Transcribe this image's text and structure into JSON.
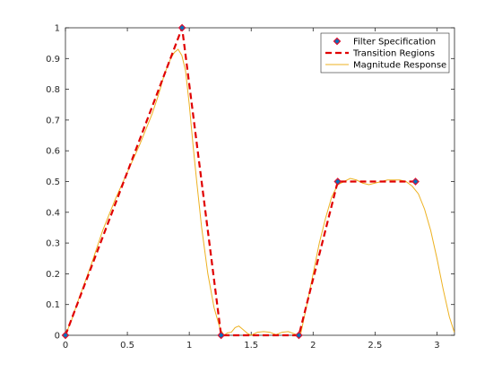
{
  "chart_data": {
    "type": "line",
    "title": "",
    "xlabel": "",
    "ylabel": "",
    "xlim": [
      0,
      3.14159
    ],
    "ylim": [
      0,
      1
    ],
    "xticks": [
      0,
      0.5,
      1,
      1.5,
      2,
      2.5,
      3
    ],
    "xtick_labels": [
      "0",
      "0.5",
      "1",
      "1.5",
      "2",
      "2.5",
      "3"
    ],
    "yticks": [
      0,
      0.1,
      0.2,
      0.3,
      0.4,
      0.5,
      0.6,
      0.7,
      0.8,
      0.9,
      1
    ],
    "ytick_labels": [
      "0",
      "0.1",
      "0.2",
      "0.3",
      "0.4",
      "0.5",
      "0.6",
      "0.7",
      "0.8",
      "0.9",
      "1"
    ],
    "grid": false,
    "legend": {
      "position": "top-right"
    },
    "series": [
      {
        "name": "Filter Specification",
        "kind": "markers",
        "color": "#0072BD",
        "edge_color": "#E0102F",
        "x": [
          0,
          0.942,
          1.257,
          1.885,
          2.199,
          2.827
        ],
        "y": [
          0,
          1,
          0,
          0,
          0.5,
          0.5
        ]
      },
      {
        "name": "Transition Regions",
        "kind": "dashed-line",
        "color": "#E00000",
        "x": [
          0,
          0.942,
          1.257,
          1.885,
          2.199,
          2.827
        ],
        "y": [
          0,
          1,
          0,
          0,
          0.5,
          0.5
        ]
      },
      {
        "name": "Magnitude Response",
        "kind": "line",
        "color": "#EDB120",
        "x": [
          0,
          0.05,
          0.1,
          0.2,
          0.3,
          0.4,
          0.5,
          0.6,
          0.7,
          0.75,
          0.8,
          0.85,
          0.88,
          0.91,
          0.94,
          0.97,
          1.0,
          1.03,
          1.06,
          1.1,
          1.15,
          1.2,
          1.25,
          1.28,
          1.31,
          1.34,
          1.37,
          1.4,
          1.43,
          1.47,
          1.5,
          1.55,
          1.6,
          1.65,
          1.7,
          1.75,
          1.8,
          1.84,
          1.88,
          1.9,
          1.95,
          2.0,
          2.05,
          2.1,
          2.15,
          2.2,
          2.25,
          2.3,
          2.35,
          2.4,
          2.45,
          2.5,
          2.55,
          2.6,
          2.65,
          2.7,
          2.75,
          2.8,
          2.85,
          2.9,
          2.95,
          3.0,
          3.05,
          3.1,
          3.14
        ],
        "y": [
          0,
          0.05,
          0.11,
          0.22,
          0.34,
          0.44,
          0.53,
          0.62,
          0.72,
          0.78,
          0.85,
          0.9,
          0.92,
          0.93,
          0.91,
          0.86,
          0.75,
          0.62,
          0.5,
          0.35,
          0.2,
          0.09,
          0.02,
          0.0,
          0.008,
          0.01,
          0.025,
          0.03,
          0.02,
          0.006,
          0.0,
          0.01,
          0.012,
          0.01,
          0.002,
          0.01,
          0.012,
          0.006,
          0.0,
          0.005,
          0.1,
          0.2,
          0.3,
          0.38,
          0.45,
          0.49,
          0.5,
          0.51,
          0.505,
          0.495,
          0.49,
          0.495,
          0.5,
          0.505,
          0.505,
          0.505,
          0.5,
          0.485,
          0.46,
          0.41,
          0.34,
          0.25,
          0.15,
          0.06,
          0.01
        ]
      }
    ]
  }
}
